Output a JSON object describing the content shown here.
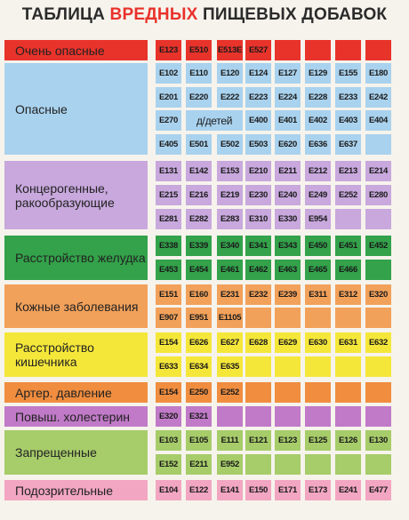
{
  "title": {
    "part1": "ТАБЛИЦА ",
    "part2": "ВРЕДНЫХ",
    "part3": " ПИЩЕВЫХ ДОБАВОК"
  },
  "categories": [
    {
      "label": "Очень опасные",
      "label_color": "#e8332b",
      "cell_color": "#e8332b",
      "rows": [
        [
          "E123",
          "E510",
          "E513E",
          "E527",
          "",
          "",
          "",
          ""
        ]
      ]
    },
    {
      "label": "Опасные",
      "label_color": "#a9d2ee",
      "cell_color": "#a9d2ee",
      "rows": [
        [
          "E102",
          "E110",
          "E120",
          "E124",
          "E127",
          "E129",
          "E155",
          "E180"
        ],
        [
          "E201",
          "E220",
          "E222",
          "E223",
          "E224",
          "E228",
          "E233",
          "E242"
        ],
        [
          "E270",
          "д/детей",
          "E400",
          "E401",
          "E402",
          "E403",
          "E404"
        ],
        [
          "E405",
          "E501",
          "E502",
          "E503",
          "E620",
          "E636",
          "E637",
          ""
        ]
      ]
    },
    {
      "label": "Концерогенные, ракообразующие",
      "label_color": "#c8a8dd",
      "cell_color": "#c8a8dd",
      "rows": [
        [
          "E131",
          "E142",
          "E153",
          "E210",
          "E211",
          "E212",
          "E213",
          "E214"
        ],
        [
          "E215",
          "E216",
          "E219",
          "E230",
          "E240",
          "E249",
          "E252",
          "E280"
        ],
        [
          "E281",
          "E282",
          "E283",
          "E310",
          "E330",
          "E954",
          "",
          ""
        ]
      ]
    },
    {
      "label": "Расстройство желудка",
      "label_color": "#33a24a",
      "cell_color": "#33a24a",
      "rows": [
        [
          "E338",
          "E339",
          "E340",
          "E341",
          "E343",
          "E450",
          "E451",
          "E452"
        ],
        [
          "E453",
          "E454",
          "E461",
          "E462",
          "E463",
          "E465",
          "E466",
          ""
        ]
      ]
    },
    {
      "label": "Кожные заболевания",
      "label_color": "#f2a15a",
      "cell_color": "#f2a15a",
      "rows": [
        [
          "E151",
          "E160",
          "E231",
          "E232",
          "E239",
          "E311",
          "E312",
          "E320"
        ],
        [
          "E907",
          "E951",
          "E1105",
          "",
          "",
          "",
          "",
          ""
        ]
      ]
    },
    {
      "label": "Расстройство кишечника",
      "label_color": "#f5e73a",
      "cell_color": "#f5e73a",
      "rows": [
        [
          "E154",
          "E626",
          "E627",
          "E628",
          "E629",
          "E630",
          "E631",
          "E632"
        ],
        [
          "E633",
          "E634",
          "E635",
          "",
          "",
          "",
          "",
          ""
        ]
      ]
    },
    {
      "label": "Артер. давление",
      "label_color": "#f08d3f",
      "cell_color": "#f08d3f",
      "rows": [
        [
          "E154",
          "E250",
          "E252",
          "",
          "",
          "",
          "",
          ""
        ]
      ]
    },
    {
      "label": "Повыш. холестерин",
      "label_color": "#c07ac7",
      "cell_color": "#c07ac7",
      "rows": [
        [
          "E320",
          "E321",
          "",
          "",
          "",
          "",
          "",
          ""
        ]
      ]
    },
    {
      "label": "Запрещенные",
      "label_color": "#a7cc6a",
      "cell_color": "#a7cc6a",
      "rows": [
        [
          "E103",
          "E105",
          "E111",
          "E121",
          "E123",
          "E125",
          "E126",
          "E130"
        ],
        [
          "E152",
          "E211",
          "E952",
          "",
          "",
          "",
          "",
          ""
        ]
      ]
    },
    {
      "label": "Подозрительные",
      "label_color": "#f2a6c2",
      "cell_color": "#f2a6c2",
      "rows": [
        [
          "E104",
          "E122",
          "E141",
          "E150",
          "E171",
          "E173",
          "E241",
          "E477"
        ]
      ]
    }
  ]
}
